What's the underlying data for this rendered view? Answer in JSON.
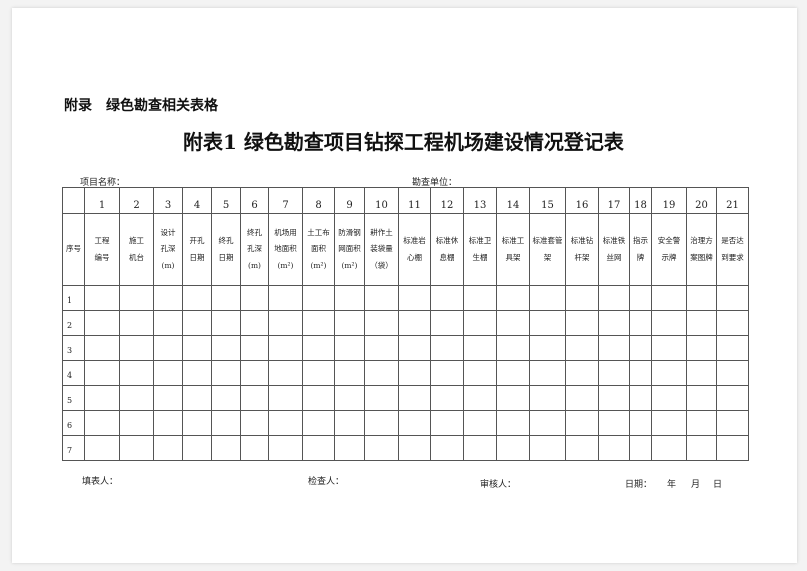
{
  "appendix": "附录　绿色勘查相关表格",
  "title": "附表1  绿色勘查项目钻探工程机场建设情况登记表",
  "project_label": "项目名称：",
  "unit_label": "勘查单位：",
  "seq_header": "序号",
  "columns": [
    {
      "n": "1",
      "h": "工程\n编号"
    },
    {
      "n": "2",
      "h": "施工\n机台"
    },
    {
      "n": "3",
      "h": "设计\n孔深\n(m)"
    },
    {
      "n": "4",
      "h": "开孔\n日期"
    },
    {
      "n": "5",
      "h": "终孔\n日期"
    },
    {
      "n": "6",
      "h": "终孔\n孔深\n(m)"
    },
    {
      "n": "7",
      "h": "机场用\n地面积\n(m²)"
    },
    {
      "n": "8",
      "h": "土工布\n面积\n(m²)"
    },
    {
      "n": "9",
      "h": "防滑钢\n网面积\n(m²)"
    },
    {
      "n": "10",
      "h": "耕作土\n装袋量\n（袋）"
    },
    {
      "n": "11",
      "h": "标准岩\n心棚"
    },
    {
      "n": "12",
      "h": "标准休\n息棚"
    },
    {
      "n": "13",
      "h": "标准卫\n生棚"
    },
    {
      "n": "14",
      "h": "标准工\n具架"
    },
    {
      "n": "15",
      "h": "标准套管\n架"
    },
    {
      "n": "16",
      "h": "标准钻\n杆架"
    },
    {
      "n": "17",
      "h": "标准铁\n丝网"
    },
    {
      "n": "18",
      "h": "指示\n牌"
    },
    {
      "n": "19",
      "h": "安全警\n示牌"
    },
    {
      "n": "20",
      "h": "治理方\n案图牌"
    },
    {
      "n": "21",
      "h": "是否达\n到要求"
    }
  ],
  "rows": [
    "1",
    "2",
    "3",
    "4",
    "5",
    "6",
    "7"
  ],
  "footer": {
    "filler": "填表人：",
    "checker": "检查人：",
    "reviewer": "审核人：",
    "date": "日期：",
    "year": "年",
    "month": "月",
    "day": "日"
  }
}
